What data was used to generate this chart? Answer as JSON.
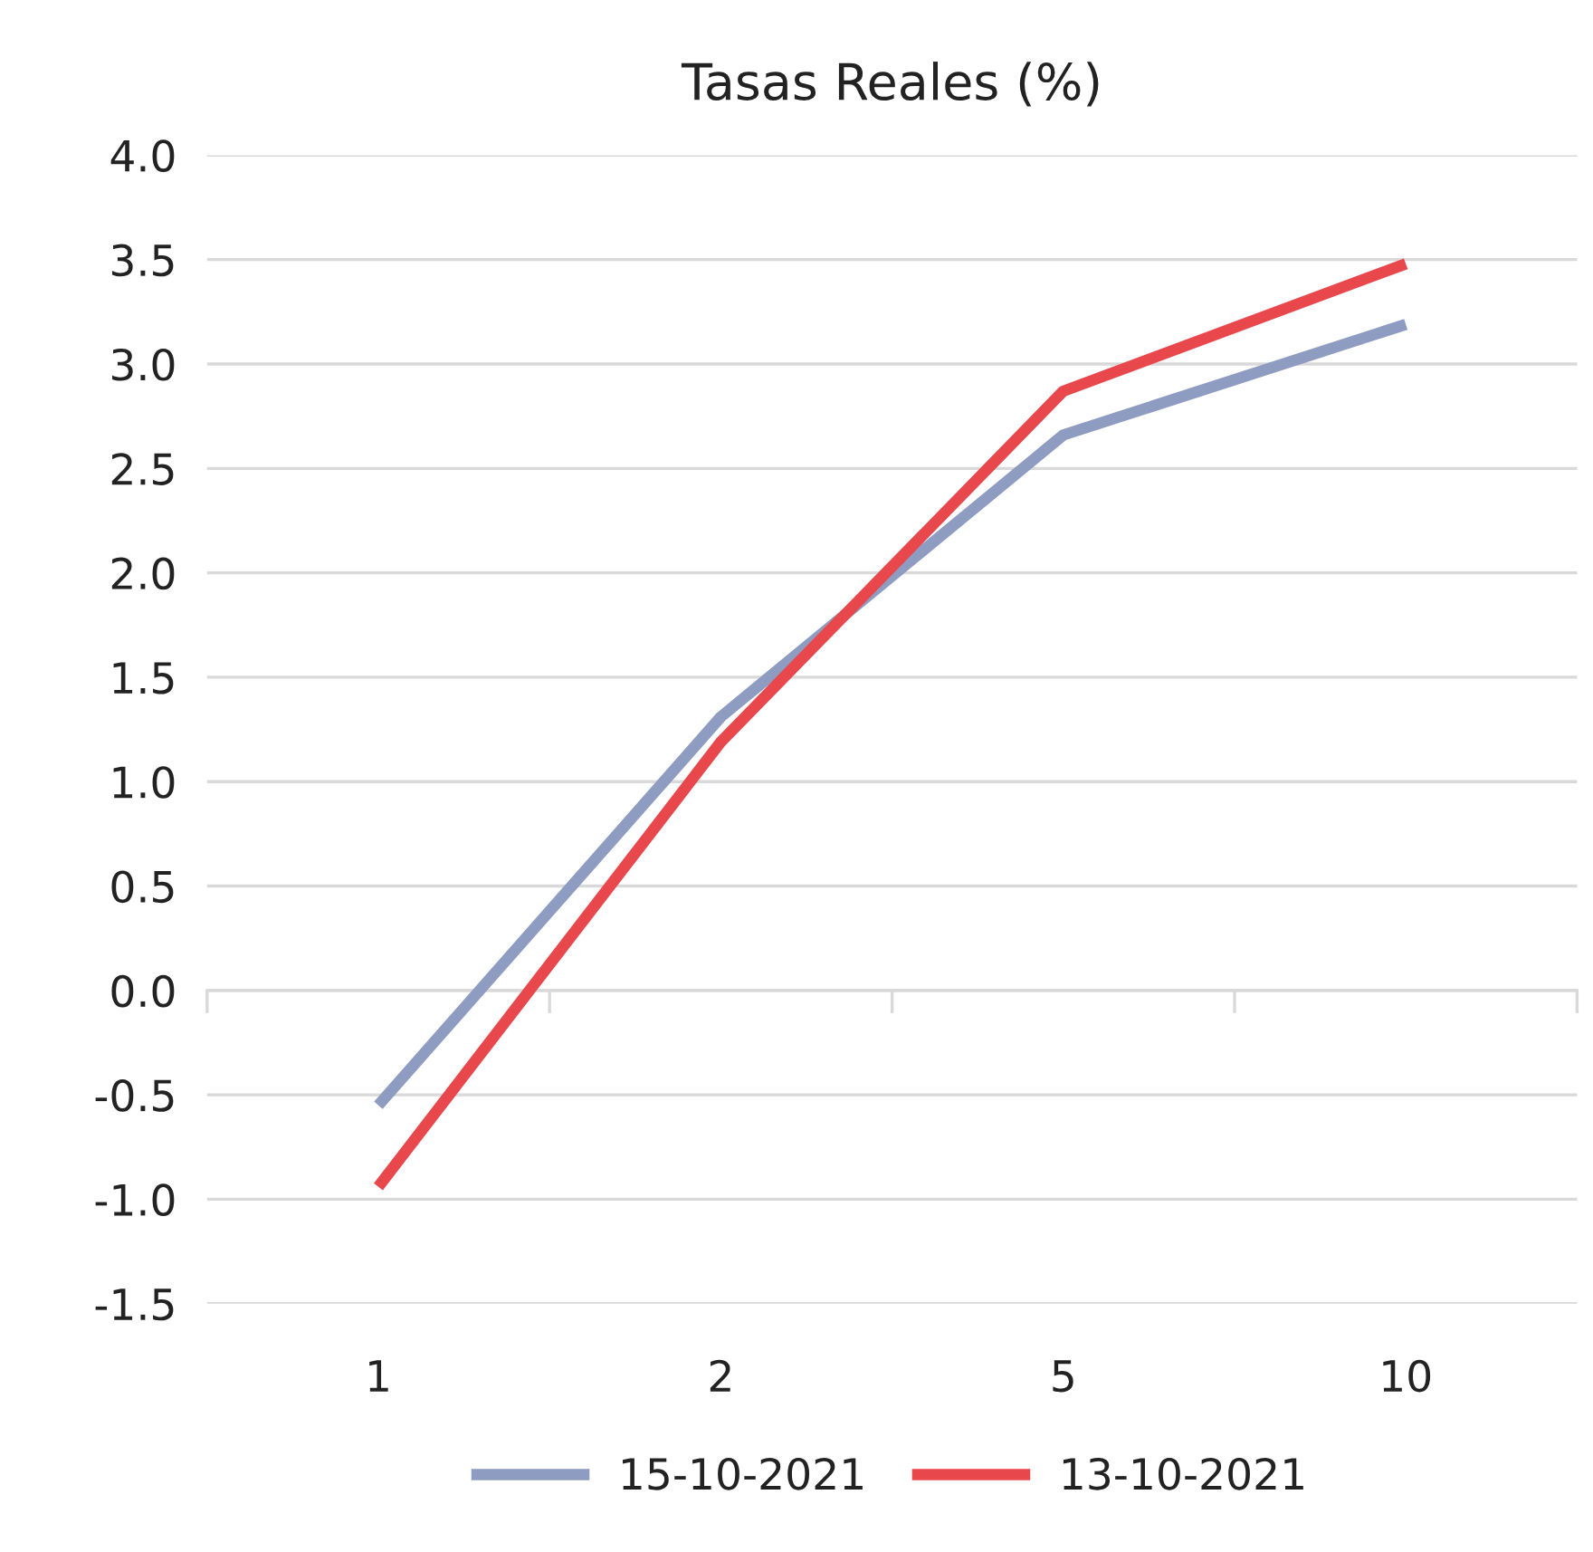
{
  "chart_data": {
    "type": "line",
    "title": "Tasas Reales (%)",
    "categories": [
      "1",
      "2",
      "5",
      "10"
    ],
    "series": [
      {
        "name": "15-10-2021",
        "color": "#8d9cc0",
        "values": [
          -0.55,
          1.31,
          2.66,
          3.19
        ]
      },
      {
        "name": "13-10-2021",
        "color": "#e8474c",
        "values": [
          -0.94,
          1.19,
          2.87,
          3.48
        ]
      }
    ],
    "ylim": [
      -1.5,
      4.0
    ],
    "yticks": [
      {
        "value": -1.5,
        "label": "-1.5"
      },
      {
        "value": -1.0,
        "label": "-1.0"
      },
      {
        "value": -0.5,
        "label": "-0.5"
      },
      {
        "value": 0.0,
        "label": "0.0"
      },
      {
        "value": 0.5,
        "label": "0.5"
      },
      {
        "value": 1.0,
        "label": "1.0"
      },
      {
        "value": 1.5,
        "label": "1.5"
      },
      {
        "value": 2.0,
        "label": "2.0"
      },
      {
        "value": 2.5,
        "label": "2.5"
      },
      {
        "value": 3.0,
        "label": "3.0"
      },
      {
        "value": 3.5,
        "label": "3.5"
      },
      {
        "value": 4.0,
        "label": "4.0"
      }
    ],
    "grid": "y",
    "legend": "bottom",
    "marker": "none",
    "line_style": "solid"
  }
}
